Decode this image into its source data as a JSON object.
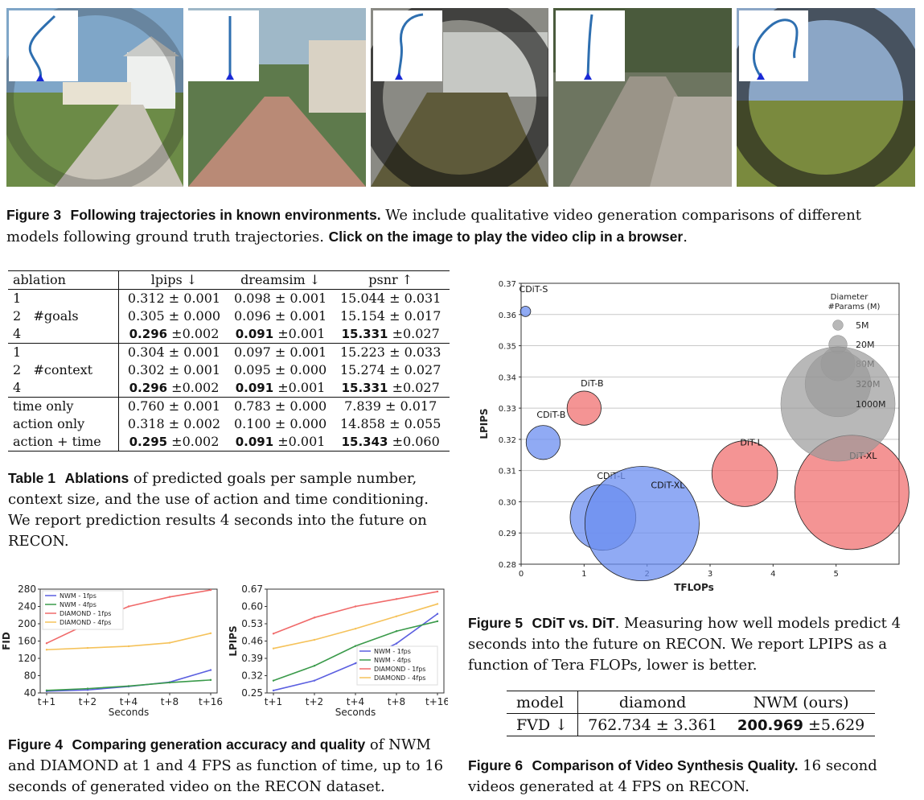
{
  "figure3": {
    "caption_label": "Figure 3",
    "caption_title": "Following trajectories in known environments.",
    "caption_body": " We include qualitative video generation comparisons of different models following ground truth trajectories. ",
    "caption_link": "Click on the image to play the video clip in a browser",
    "caption_end": "."
  },
  "table1": {
    "headers": [
      "ablation",
      "lpips ↓",
      "dreamsim ↓",
      "psnr ↑"
    ],
    "rows": [
      {
        "a": "1",
        "b": "",
        "lpips": "0.312 ± 0.001",
        "dreamsim": "0.098 ± 0.001",
        "psnr": "15.044 ± 0.031"
      },
      {
        "a": "2",
        "b": "#goals",
        "lpips": "0.305 ± 0.000",
        "dreamsim": "0.096 ± 0.001",
        "psnr": "15.154 ± 0.017"
      },
      {
        "a": "4",
        "b": "",
        "lpips_b": "0.296",
        "lpips_e": " ±0.002",
        "dreamsim_b": "0.091",
        "dreamsim_e": " ±0.001",
        "psnr_b": "15.331",
        "psnr_e": " ±0.027"
      },
      {
        "a": "1",
        "b": "",
        "lpips": "0.304 ± 0.001",
        "dreamsim": "0.097 ± 0.001",
        "psnr": "15.223 ± 0.033"
      },
      {
        "a": "2",
        "b": "#context",
        "lpips": "0.302 ± 0.001",
        "dreamsim": "0.095 ± 0.000",
        "psnr": "15.274 ± 0.027"
      },
      {
        "a": "4",
        "b": "",
        "lpips_b": "0.296",
        "lpips_e": " ±0.002",
        "dreamsim_b": "0.091",
        "dreamsim_e": " ±0.001",
        "psnr_b": "15.331",
        "psnr_e": " ±0.027"
      },
      {
        "a": "time only",
        "lpips": "0.760 ± 0.001",
        "dreamsim": "0.783 ± 0.000",
        "psnr": "7.839 ± 0.017"
      },
      {
        "a": "action only",
        "lpips": "0.318 ± 0.002",
        "dreamsim": "0.100 ± 0.000",
        "psnr": "14.858 ± 0.055"
      },
      {
        "a": "action + time",
        "lpips_b": "0.295",
        "lpips_e": " ±0.002",
        "dreamsim_b": "0.091",
        "dreamsim_e": " ±0.001",
        "psnr_b": "15.343",
        "psnr_e": " ±0.060"
      }
    ],
    "caption_label": "Table 1",
    "caption_title": "Ablations",
    "caption_body": " of predicted goals per sample number, context size, and the use of action and time conditioning. We report prediction results 4 seconds into the future on RECON."
  },
  "figure4": {
    "caption_label": "Figure 4",
    "caption_title": "Comparing generation accuracy and quality",
    "caption_body": " of NWM and DIAMOND at 1 and 4 FPS as function of time, up to 16 seconds of generated video on the RECON dataset."
  },
  "figure5": {
    "caption_label": "Figure 5",
    "caption_title": "CDiT vs. DiT",
    "caption_body": ". Measuring how well models predict 4 seconds into the future on RECON. We report LPIPS as a function of Tera FLOPs, lower is better."
  },
  "figure6": {
    "caption_label": "Figure 6",
    "caption_title": "Comparison of Video Synthesis Quality.",
    "caption_body": " 16 second videos generated at 4 FPS on RECON.",
    "headers": [
      "model",
      "diamond",
      "NWM (ours)"
    ],
    "row_label": "FVD ↓",
    "diamond_value": "762.734 ± 3.361",
    "nwm_bold": "200.969",
    "nwm_err": " ±5.629"
  },
  "chart_data": [
    {
      "type": "line",
      "xlabel": "Seconds",
      "ylabel": "FID",
      "categories": [
        "t+1",
        "t+2",
        "t+4",
        "t+8",
        "t+16"
      ],
      "ylim": [
        40,
        280
      ],
      "yticks": [
        40,
        80,
        120,
        160,
        200,
        240,
        280
      ],
      "legend": "top-left",
      "series": [
        {
          "name": "NWM - 1fps",
          "color": "#5b5fe0",
          "values": [
            44,
            47,
            55,
            65,
            93
          ]
        },
        {
          "name": "NWM - 4fps",
          "color": "#3a9a4a",
          "values": [
            46,
            50,
            56,
            64,
            70
          ]
        },
        {
          "name": "DIAMOND - 1fps",
          "color": "#f06a6a",
          "values": [
            155,
            200,
            240,
            262,
            278
          ]
        },
        {
          "name": "DIAMOND - 4fps",
          "color": "#f5c25a",
          "values": [
            140,
            144,
            148,
            156,
            178
          ]
        }
      ]
    },
    {
      "type": "line",
      "xlabel": "Seconds",
      "ylabel": "LPIPS",
      "categories": [
        "t+1",
        "t+2",
        "t+4",
        "t+8",
        "t+16"
      ],
      "ylim": [
        0.25,
        0.67
      ],
      "yticks": [
        0.25,
        0.32,
        0.39,
        0.46,
        0.53,
        0.6,
        0.67
      ],
      "legend": "bottom-right",
      "series": [
        {
          "name": "NWM - 1fps",
          "color": "#5b5fe0",
          "values": [
            0.26,
            0.3,
            0.37,
            0.45,
            0.57
          ]
        },
        {
          "name": "NWM - 4fps",
          "color": "#3a9a4a",
          "values": [
            0.3,
            0.36,
            0.44,
            0.5,
            0.54
          ]
        },
        {
          "name": "DIAMOND - 1fps",
          "color": "#f06a6a",
          "values": [
            0.49,
            0.555,
            0.6,
            0.63,
            0.66
          ]
        },
        {
          "name": "DIAMOND - 4fps",
          "color": "#f5c25a",
          "values": [
            0.43,
            0.465,
            0.51,
            0.56,
            0.61
          ]
        }
      ]
    },
    {
      "type": "scatter",
      "xlabel": "TFLOPs",
      "ylabel": "LPIPS",
      "xlim": [
        0,
        6
      ],
      "ylim": [
        0.28,
        0.37
      ],
      "xticks": [
        0,
        1,
        2,
        3,
        4,
        5
      ],
      "yticks": [
        0.28,
        0.29,
        0.3,
        0.31,
        0.32,
        0.33,
        0.34,
        0.35,
        0.36,
        0.37
      ],
      "grid": "horizontal",
      "points": [
        {
          "label": "CDiT-S",
          "x": 0.07,
          "y": 0.361,
          "params_m": 5,
          "color": "#6b8ef0"
        },
        {
          "label": "CDiT-B",
          "x": 0.35,
          "y": 0.319,
          "params_m": 80,
          "color": "#6b8ef0"
        },
        {
          "label": "DiT-B",
          "x": 1.0,
          "y": 0.33,
          "params_m": 80,
          "color": "#f07070"
        },
        {
          "label": "CDiT-L",
          "x": 1.3,
          "y": 0.295,
          "params_m": 320,
          "color": "#6b8ef0"
        },
        {
          "label": "CDiT-XL",
          "x": 1.92,
          "y": 0.293,
          "params_m": 1000,
          "color": "#6b8ef0"
        },
        {
          "label": "DiT-L",
          "x": 3.55,
          "y": 0.309,
          "params_m": 320,
          "color": "#f07070"
        },
        {
          "label": "DiT-XL",
          "x": 5.25,
          "y": 0.303,
          "params_m": 1000,
          "color": "#f07070"
        }
      ],
      "size_legend_title": [
        "Diameter",
        "#Params (M)"
      ],
      "size_legend": [
        {
          "label": "5M",
          "params_m": 5
        },
        {
          "label": "20M",
          "params_m": 20
        },
        {
          "label": "80M",
          "params_m": 80
        },
        {
          "label": "320M",
          "params_m": 320
        },
        {
          "label": "1000M",
          "params_m": 1000
        }
      ]
    }
  ]
}
